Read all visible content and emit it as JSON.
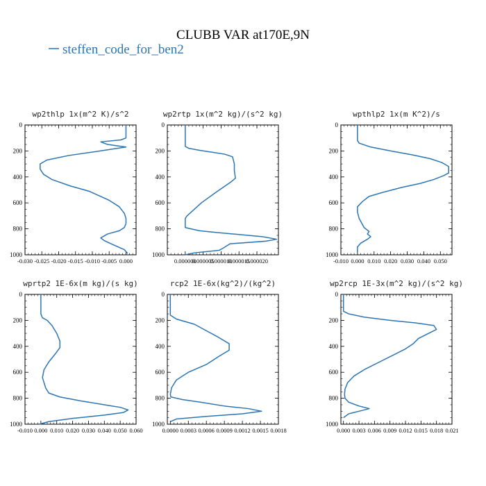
{
  "figure": {
    "title": "CLUBB VAR at170E,9N",
    "legend": "steffen_code_for_ben2",
    "line_color": "#2b74b3"
  },
  "chart_data": [
    {
      "type": "line",
      "title": "wp2thlp  1x(m^2 K)/s^2",
      "xlim": [
        -0.03,
        0.003
      ],
      "xticks": [
        -0.03,
        -0.025,
        -0.02,
        -0.015,
        -0.01,
        -0.005,
        0.0
      ],
      "xtick_labels": [
        "-0.030",
        "-0.025",
        "-0.020",
        "-0.015",
        "-0.010",
        "-0.005",
        "0.000"
      ],
      "ylim": [
        0,
        1000
      ],
      "yticks": [
        0,
        200,
        400,
        600,
        800,
        1000
      ],
      "ytick_labels": [
        "0",
        "200",
        "400",
        "600",
        "800",
        "1000"
      ],
      "y_inverted": true,
      "series": [
        {
          "x": [
            0.0,
            0.0,
            0.0,
            -0.0015,
            -0.0075,
            -0.0055,
            0.0,
            -0.009,
            -0.017,
            -0.0235,
            -0.0255,
            -0.0255,
            -0.0245,
            -0.022,
            -0.0165,
            -0.011,
            -0.005,
            -0.002,
            -0.0005,
            0.0,
            0.0,
            -0.0005,
            -0.002,
            -0.0055,
            -0.0075,
            -0.0065,
            -0.004,
            -0.0005,
            0.0005
          ],
          "y": [
            0,
            50,
            100,
            115,
            130,
            150,
            170,
            205,
            235,
            270,
            300,
            340,
            380,
            420,
            470,
            510,
            580,
            630,
            680,
            720,
            760,
            790,
            815,
            840,
            870,
            890,
            920,
            960,
            990
          ]
        }
      ]
    },
    {
      "type": "line",
      "title": "wp2rtp  1x(m^2 kg)/(s^2 kg)",
      "xlim": [
        -5e-06,
        2.6e-05
      ],
      "xticks": [
        0.0,
        5e-06,
        1e-05,
        1.5e-05,
        2e-05
      ],
      "xtick_labels": [
        "0.000000",
        "0.000005",
        "0.000010",
        "0.000015",
        "0.000020"
      ],
      "ylim": [
        0,
        1000
      ],
      "yticks": [
        0,
        200,
        400,
        600,
        800,
        1000
      ],
      "ytick_labels": [
        "0",
        "200",
        "400",
        "600",
        "800",
        "1000"
      ],
      "y_inverted": true,
      "series": [
        {
          "x": [
            0.0,
            0.0,
            0.0,
            0.0,
            0.0,
            0.0,
            1e-06,
            4e-06,
            7.5e-06,
            1.1e-05,
            1.32e-05,
            1.37e-05,
            1.37e-05,
            1.4e-05,
            1.27e-05,
            8.5e-06,
            4.5e-06,
            2.5e-06,
            5e-07,
            0.0,
            0.0,
            0.0,
            4e-06,
            9.5e-06,
            1.55e-05,
            2.15e-05,
            2.55e-05,
            2.25e-05,
            1.25e-05,
            1.05e-05,
            9.5e-06,
            2.5e-06,
            0.0
          ],
          "y": [
            0,
            50,
            100,
            130,
            150,
            165,
            180,
            195,
            210,
            225,
            245,
            300,
            350,
            410,
            440,
            520,
            600,
            650,
            700,
            720,
            760,
            790,
            815,
            830,
            845,
            860,
            880,
            895,
            915,
            950,
            965,
            985,
            1000
          ]
        }
      ]
    },
    {
      "type": "line",
      "title": "wpthlp2  1x(m K^2)/s",
      "xlim": [
        -0.01,
        0.057
      ],
      "xticks": [
        -0.01,
        0.0,
        0.01,
        0.02,
        0.03,
        0.04,
        0.05
      ],
      "xtick_labels": [
        "-0.010",
        "0.000",
        "0.010",
        "0.020",
        "0.030",
        "0.040",
        "0.050"
      ],
      "ylim": [
        0,
        1000
      ],
      "yticks": [
        0,
        200,
        400,
        600,
        800,
        1000
      ],
      "ytick_labels": [
        "0",
        "200",
        "400",
        "600",
        "800",
        "1000"
      ],
      "y_inverted": true,
      "series": [
        {
          "x": [
            0.0,
            0.0,
            0.0,
            0.0,
            0.001,
            0.008,
            0.02,
            0.033,
            0.044,
            0.051,
            0.055,
            0.055,
            0.052,
            0.046,
            0.038,
            0.027,
            0.015,
            0.007,
            0.003,
            0.0,
            0.0,
            0.001,
            0.004,
            0.007,
            0.006,
            0.008,
            0.006,
            0.002,
            0.0,
            0.0
          ],
          "y": [
            0,
            50,
            100,
            120,
            140,
            170,
            200,
            230,
            260,
            290,
            320,
            370,
            390,
            420,
            450,
            480,
            520,
            550,
            590,
            630,
            670,
            720,
            790,
            820,
            840,
            860,
            880,
            910,
            940,
            980
          ]
        }
      ]
    },
    {
      "type": "line",
      "title": "wprtp2  1E-6x(m kg)/(s kg)",
      "xlim": [
        -0.01,
        0.06
      ],
      "xticks": [
        -0.01,
        0.0,
        0.01,
        0.02,
        0.03,
        0.04,
        0.05,
        0.06
      ],
      "xtick_labels": [
        "-0.010",
        "0.000",
        "0.010",
        "0.020",
        "0.030",
        "0.040",
        "0.050",
        "0.060"
      ],
      "ylim": [
        0,
        1000
      ],
      "yticks": [
        0,
        200,
        400,
        600,
        800,
        1000
      ],
      "ytick_labels": [
        "0",
        "200",
        "400",
        "600",
        "800",
        "1000"
      ],
      "y_inverted": true,
      "series": [
        {
          "x": [
            0.0,
            0.0,
            0.0,
            0.0,
            0.001,
            0.004,
            0.007,
            0.01,
            0.012,
            0.012,
            0.009,
            0.005,
            0.002,
            0.001,
            0.002,
            0.003,
            0.005,
            0.012,
            0.025,
            0.04,
            0.05,
            0.055,
            0.052,
            0.04,
            0.02,
            0.005,
            -0.001
          ],
          "y": [
            0,
            50,
            100,
            150,
            180,
            200,
            240,
            300,
            360,
            410,
            460,
            520,
            580,
            640,
            680,
            720,
            760,
            790,
            820,
            850,
            870,
            890,
            910,
            930,
            955,
            980,
            1000
          ]
        }
      ]
    },
    {
      "type": "line",
      "title": "rcp2  1E-6x(kg^2)/(kg^2)",
      "xlim": [
        -5e-05,
        0.0018
      ],
      "xticks": [
        0.0,
        0.0003,
        0.0006,
        0.0009,
        0.0012,
        0.0015,
        0.0018
      ],
      "xtick_labels": [
        "0.0000",
        "0.0003",
        "0.0006",
        "0.0009",
        "0.0012",
        "0.0015",
        "0.0018"
      ],
      "ylim": [
        0,
        1000
      ],
      "yticks": [
        0,
        200,
        400,
        600,
        800,
        1000
      ],
      "ytick_labels": [
        "0",
        "200",
        "400",
        "600",
        "800",
        "1000"
      ],
      "y_inverted": true,
      "series": [
        {
          "x": [
            0.0,
            0.0,
            0.0,
            0.0,
            0.0001,
            0.0004,
            0.0006,
            0.0008,
            0.00098,
            0.00098,
            0.0008,
            0.0006,
            0.0003,
            0.0001,
            2e-05,
            0.0,
            1e-05,
            0.0002,
            0.0005,
            0.0009,
            0.0013,
            0.00152,
            0.0012,
            0.0006,
            0.0001,
            0.0
          ],
          "y": [
            0,
            50,
            100,
            160,
            190,
            230,
            280,
            330,
            380,
            430,
            480,
            540,
            600,
            660,
            720,
            770,
            790,
            810,
            830,
            860,
            880,
            900,
            920,
            940,
            960,
            980
          ]
        }
      ]
    },
    {
      "type": "line",
      "title": "wp2rcp  1E-3x(m^2 kg)/(s^2 kg)",
      "xlim": [
        -0.0005,
        0.021
      ],
      "xticks": [
        0.0,
        0.003,
        0.006,
        0.009,
        0.012,
        0.015,
        0.018,
        0.021
      ],
      "xtick_labels": [
        "0.000",
        "0.003",
        "0.006",
        "0.009",
        "0.012",
        "0.015",
        "0.018",
        "0.021"
      ],
      "ylim": [
        0,
        1000
      ],
      "yticks": [
        0,
        200,
        400,
        600,
        800,
        1000
      ],
      "ytick_labels": [
        "0",
        "200",
        "400",
        "600",
        "800",
        "1000"
      ],
      "y_inverted": true,
      "series": [
        {
          "x": [
            0.0,
            0.0,
            0.0,
            0.0,
            0.001,
            0.004,
            0.009,
            0.014,
            0.0175,
            0.018,
            0.0165,
            0.0145,
            0.0135,
            0.012,
            0.01,
            0.007,
            0.004,
            0.002,
            0.0008,
            0.0003,
            0.0002,
            0.0003,
            0.001,
            0.003,
            0.005,
            0.003,
            0.001,
            0.0
          ],
          "y": [
            0,
            50,
            100,
            130,
            150,
            175,
            200,
            220,
            240,
            270,
            300,
            340,
            380,
            420,
            460,
            520,
            580,
            630,
            680,
            730,
            770,
            800,
            830,
            860,
            880,
            900,
            920,
            950
          ]
        }
      ]
    }
  ]
}
